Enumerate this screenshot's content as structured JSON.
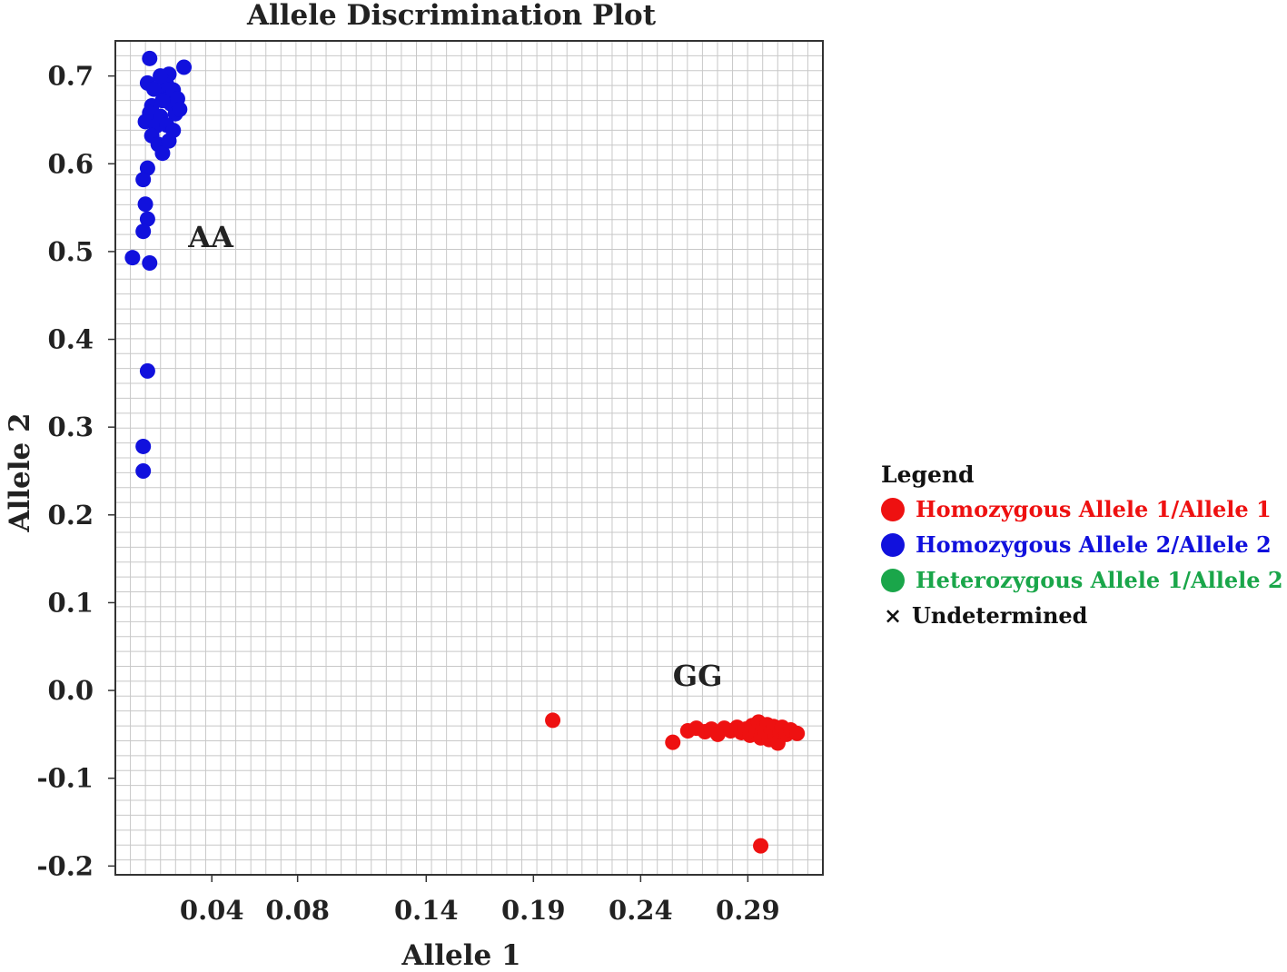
{
  "chart_data": {
    "type": "scatter",
    "title": "Allele Discrimination Plot",
    "xlabel": "Allele 1",
    "ylabel": "Allele 2",
    "xlim": [
      -0.005,
      0.325
    ],
    "ylim": [
      -0.21,
      0.74
    ],
    "x_ticks": [
      {
        "value": 0.04,
        "label": "0.04"
      },
      {
        "value": 0.08,
        "label": "0.08"
      },
      {
        "value": 0.14,
        "label": "0.14"
      },
      {
        "value": 0.19,
        "label": "0.19"
      },
      {
        "value": 0.24,
        "label": "0.24"
      },
      {
        "value": 0.29,
        "label": "0.29"
      }
    ],
    "y_ticks": [
      {
        "value": 0.7,
        "label": "0.7"
      },
      {
        "value": 0.6,
        "label": "0.6"
      },
      {
        "value": 0.5,
        "label": "0.5"
      },
      {
        "value": 0.4,
        "label": "0.4"
      },
      {
        "value": 0.3,
        "label": "0.3"
      },
      {
        "value": 0.2,
        "label": "0.2"
      },
      {
        "value": 0.1,
        "label": "0.1"
      },
      {
        "value": 0.0,
        "label": "0.0"
      },
      {
        "value": -0.1,
        "label": "-0.1"
      },
      {
        "value": -0.2,
        "label": "-0.2"
      }
    ],
    "grid": true,
    "legend_position": "right",
    "series": [
      {
        "name": "Homozygous Allele 1/Allele 1",
        "color": "#ee1111",
        "points": [
          [
            0.199,
            -0.034
          ],
          [
            0.255,
            -0.059
          ],
          [
            0.262,
            -0.046
          ],
          [
            0.266,
            -0.043
          ],
          [
            0.27,
            -0.047
          ],
          [
            0.273,
            -0.044
          ],
          [
            0.276,
            -0.05
          ],
          [
            0.279,
            -0.043
          ],
          [
            0.282,
            -0.046
          ],
          [
            0.285,
            -0.042
          ],
          [
            0.287,
            -0.048
          ],
          [
            0.289,
            -0.044
          ],
          [
            0.291,
            -0.051
          ],
          [
            0.292,
            -0.04
          ],
          [
            0.294,
            -0.047
          ],
          [
            0.295,
            -0.036
          ],
          [
            0.296,
            -0.054
          ],
          [
            0.297,
            -0.043
          ],
          [
            0.298,
            -0.049
          ],
          [
            0.299,
            -0.039
          ],
          [
            0.3,
            -0.056
          ],
          [
            0.301,
            -0.046
          ],
          [
            0.302,
            -0.041
          ],
          [
            0.303,
            -0.052
          ],
          [
            0.304,
            -0.06
          ],
          [
            0.305,
            -0.047
          ],
          [
            0.306,
            -0.042
          ],
          [
            0.308,
            -0.05
          ],
          [
            0.31,
            -0.045
          ],
          [
            0.313,
            -0.049
          ],
          [
            0.296,
            -0.177
          ]
        ]
      },
      {
        "name": "Homozygous Allele 2/Allele 2",
        "color": "#1111dd",
        "points": [
          [
            0.011,
            0.72
          ],
          [
            0.01,
            0.692
          ],
          [
            0.012,
            0.666
          ],
          [
            0.011,
            0.658
          ],
          [
            0.009,
            0.648
          ],
          [
            0.014,
            0.643
          ],
          [
            0.012,
            0.632
          ],
          [
            0.015,
            0.622
          ],
          [
            0.017,
            0.612
          ],
          [
            0.016,
            0.654
          ],
          [
            0.018,
            0.676
          ],
          [
            0.019,
            0.69
          ],
          [
            0.02,
            0.702
          ],
          [
            0.022,
            0.684
          ],
          [
            0.021,
            0.668
          ],
          [
            0.023,
            0.657
          ],
          [
            0.024,
            0.674
          ],
          [
            0.025,
            0.662
          ],
          [
            0.019,
            0.644
          ],
          [
            0.02,
            0.626
          ],
          [
            0.013,
            0.685
          ],
          [
            0.016,
            0.7
          ],
          [
            0.027,
            0.71
          ],
          [
            0.022,
            0.638
          ],
          [
            0.017,
            0.672
          ],
          [
            0.01,
            0.595
          ],
          [
            0.008,
            0.582
          ],
          [
            0.009,
            0.554
          ],
          [
            0.01,
            0.537
          ],
          [
            0.008,
            0.523
          ],
          [
            0.003,
            0.493
          ],
          [
            0.011,
            0.487
          ],
          [
            0.01,
            0.364
          ],
          [
            0.008,
            0.278
          ],
          [
            0.008,
            0.25
          ]
        ]
      },
      {
        "name": "Heterozygous Allele 1/Allele 2",
        "color": "#1aa64a",
        "points": []
      }
    ],
    "undetermined_label": "Undetermined",
    "annotations": [
      {
        "text": "AA",
        "x": 0.029,
        "y": 0.505
      },
      {
        "text": "GG",
        "x": 0.255,
        "y": 0.005
      }
    ]
  },
  "legend": {
    "title": "Legend",
    "undetermined_symbol": "×"
  }
}
